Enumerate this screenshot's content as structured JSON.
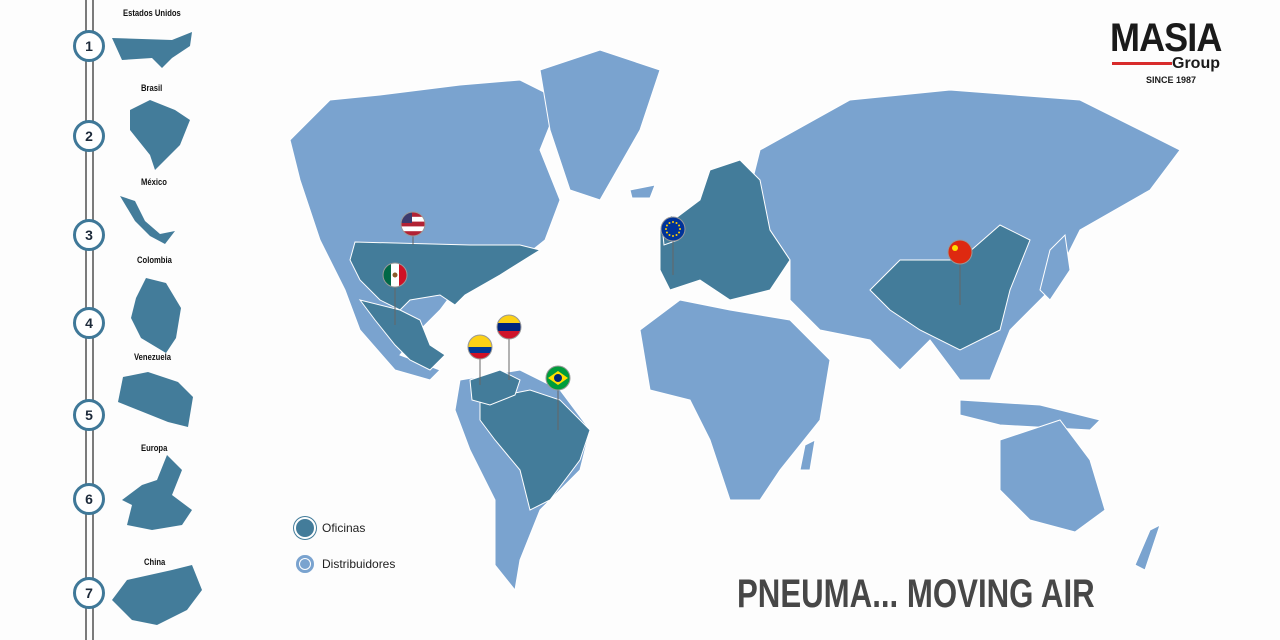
{
  "timeline": [
    {
      "number": "1",
      "label": "Estados Unidos"
    },
    {
      "number": "2",
      "label": "Brasil"
    },
    {
      "number": "3",
      "label": "México"
    },
    {
      "number": "4",
      "label": "Colombia"
    },
    {
      "number": "5",
      "label": "Venezuela"
    },
    {
      "number": "6",
      "label": "Europa"
    },
    {
      "number": "7",
      "label": "China"
    }
  ],
  "legend": {
    "offices": "Oficinas",
    "distributors": "Distribuidores"
  },
  "logo": {
    "name": "MASIA",
    "group": "Group",
    "since": "SINCE 1987"
  },
  "slogan": "PNEUMA... MOVING AIR",
  "colors": {
    "offices": "#437c9a",
    "distributors": "#7aa3cf",
    "logo_line": "#d82b2b"
  },
  "pins": [
    "usa-flag",
    "mexico-flag",
    "colombia-flag",
    "venezuela-flag",
    "brazil-flag",
    "eu-flag",
    "china-flag"
  ]
}
